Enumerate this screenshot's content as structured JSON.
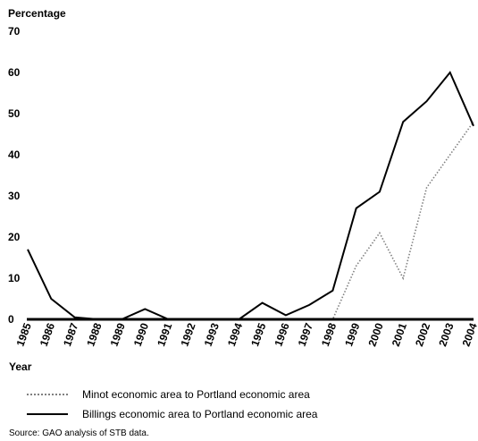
{
  "chart_data": {
    "type": "line",
    "title": "",
    "ylabel": "Percentage",
    "xlabel": "Year",
    "ylim": [
      0,
      70
    ],
    "yticks": [
      0,
      10,
      20,
      30,
      40,
      50,
      60,
      70
    ],
    "x": [
      "1985",
      "1986",
      "1987",
      "1988",
      "1989",
      "1990",
      "1991",
      "1992",
      "1993",
      "1994",
      "1995",
      "1996",
      "1997",
      "1998",
      "1999",
      "2000",
      "2001",
      "2002",
      "2003",
      "2004"
    ],
    "series": [
      {
        "name": "Minot economic area to Portland economic area",
        "style": "dotted",
        "color": "#808080",
        "values": [
          0,
          0,
          0,
          0,
          0,
          0,
          0,
          0,
          0,
          0,
          0,
          0,
          0,
          0,
          13,
          21,
          10,
          32,
          40,
          48
        ]
      },
      {
        "name": "Billings economic area to Portland economic area",
        "style": "solid",
        "color": "#000000",
        "values": [
          17,
          5,
          0.5,
          0,
          0,
          2.5,
          0,
          0,
          0,
          0,
          4,
          1,
          3.5,
          7,
          27,
          31,
          48,
          53,
          60,
          47
        ]
      }
    ],
    "legend_placement": "bottom",
    "grid": false
  },
  "source_text": "Source: GAO analysis of STB data."
}
